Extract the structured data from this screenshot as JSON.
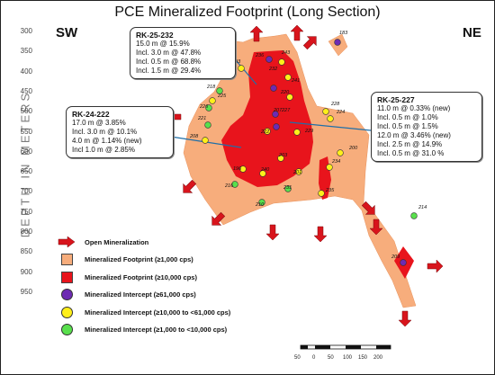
{
  "map": {
    "title": "PCE Mineralized Footprint (Long Section)",
    "sw_label": "SW",
    "ne_label": "NE",
    "axis_label": "DEPTH IN METERS",
    "depth_ticks": [
      "300",
      "350",
      "400",
      "450",
      "500",
      "550",
      "600",
      "650",
      "700",
      "750",
      "800",
      "850",
      "900",
      "950"
    ]
  },
  "colors": {
    "footprint_1000": "#f7ad7c",
    "footprint_10000": "#e8141c",
    "arrow": "#d8141c",
    "intercept_purple": "#6d2ab3",
    "intercept_yellow": "#ffef1a",
    "intercept_green": "#59e04d"
  },
  "callouts": [
    {
      "id": "rk25232",
      "title": "RK-25-232",
      "lines": [
        "15.0 m @ 15.9%",
        "Incl. 3.0 m @ 47.8%",
        "Incl. 0.5 m @ 68.8%",
        "Incl. 1.5 m @ 29.4%"
      ]
    },
    {
      "id": "rk24222",
      "title": "RK-24-222",
      "lines": [
        "17.0 m @ 3.85%",
        "Incl. 3.0 m @ 10.1%",
        "4.0 m @ 1.14% (new)",
        "Incl 1.0 m @ 2.85%"
      ]
    },
    {
      "id": "rk25227",
      "title": "RK-25-227",
      "lines": [
        "11.0 m @ 0.33% (new)",
        "Incl. 0.5 m @ 1.0%",
        "Incl. 0.5 m @ 1.5%",
        "12.0 m @ 3.46% (new)",
        "Incl. 2.5 m @ 14.9%",
        "Incl. 0.5 m @ 31.0 %"
      ]
    }
  ],
  "drillholes": [
    {
      "label": "183",
      "type": "purple"
    },
    {
      "label": "193",
      "type": "yellow"
    },
    {
      "label": "236",
      "type": "purple"
    },
    {
      "label": "243",
      "type": "yellow"
    },
    {
      "label": "232",
      "type": "purple"
    },
    {
      "label": "220",
      "type": "yellow"
    },
    {
      "label": "241",
      "type": "yellow"
    },
    {
      "label": "225",
      "type": "yellow"
    },
    {
      "label": "218",
      "type": "green"
    },
    {
      "label": "226",
      "type": "green"
    },
    {
      "label": "221",
      "type": "green"
    },
    {
      "label": "208",
      "type": "yellow"
    },
    {
      "label": "227",
      "type": "purple"
    },
    {
      "label": "207",
      "type": "purple"
    },
    {
      "label": "228",
      "type": "yellow"
    },
    {
      "label": "224",
      "type": "yellow"
    },
    {
      "label": "229",
      "type": "yellow"
    },
    {
      "label": "200",
      "type": "yellow"
    },
    {
      "label": "222",
      "type": "yellow"
    },
    {
      "label": "203",
      "type": "yellow"
    },
    {
      "label": "234",
      "type": "yellow"
    },
    {
      "label": "196",
      "type": "yellow"
    },
    {
      "label": "240",
      "type": "yellow"
    },
    {
      "label": "201",
      "type": "yellow"
    },
    {
      "label": "235",
      "type": "yellow"
    },
    {
      "label": "231",
      "type": "green"
    },
    {
      "label": "216",
      "type": "green"
    },
    {
      "label": "210",
      "type": "green"
    },
    {
      "label": "214",
      "type": "green"
    },
    {
      "label": "209",
      "type": "purple"
    }
  ],
  "legend": [
    {
      "symbol": "arrow",
      "label": "Open Mineralization"
    },
    {
      "symbol": "square",
      "color": "#f7ad7c",
      "label": "Mineralized Footprint (≥1,000 cps)"
    },
    {
      "symbol": "square",
      "color": "#e8141c",
      "label": "Mineralized Footprint (≥10,000 cps)"
    },
    {
      "symbol": "dot",
      "color": "#6d2ab3",
      "label": "Mineralized Intercept (≥61,000 cps)"
    },
    {
      "symbol": "dot",
      "color": "#ffef1a",
      "label": "Mineralized Intercept (≥10,000 to <61,000 cps)"
    },
    {
      "symbol": "dot",
      "color": "#59e04d",
      "label": "Mineralized Intercept (≥1,000 to <10,000 cps)"
    }
  ],
  "scale": {
    "labels": [
      "50",
      "0",
      "50",
      "100",
      "150",
      "200"
    ]
  }
}
